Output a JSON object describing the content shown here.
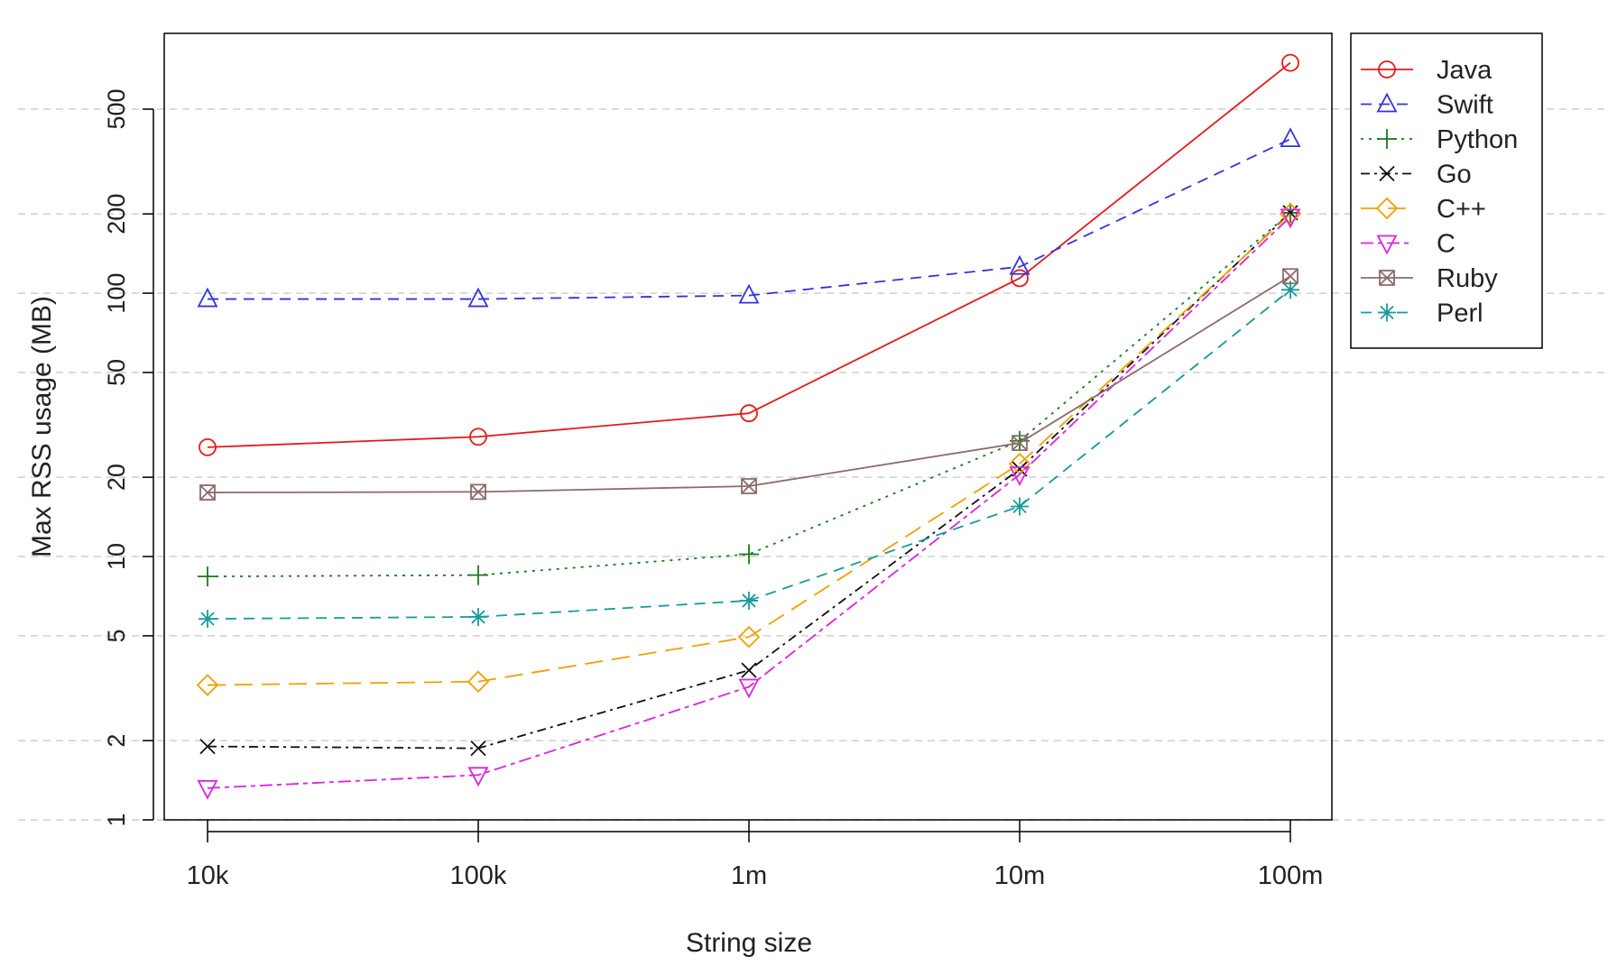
{
  "chart_data": {
    "type": "line",
    "xlabel": "String size",
    "ylabel": "Max RSS usage (MB)",
    "yscale": "log",
    "ylim": [
      1,
      700
    ],
    "yticks": [
      1,
      2,
      5,
      10,
      20,
      50,
      100,
      200,
      500
    ],
    "categories": [
      "10k",
      "100k",
      "1m",
      "10m",
      "100m"
    ],
    "grid": "horizontal dashed",
    "legend_position": "top-right, outside plot",
    "series": [
      {
        "name": "Java",
        "color": "#e41a1c",
        "line": "solid",
        "marker": "circle",
        "values": [
          26,
          28.5,
          35,
          114,
          750
        ]
      },
      {
        "name": "Swift",
        "color": "#3333dd",
        "line": "dashed",
        "marker": "triangle-up",
        "values": [
          95,
          95,
          98,
          126,
          385
        ]
      },
      {
        "name": "Python",
        "color": "#1a7a1a",
        "line": "dotted",
        "marker": "plus",
        "values": [
          8.4,
          8.5,
          10.2,
          27.5,
          202
        ]
      },
      {
        "name": "Go",
        "color": "#111111",
        "line": "dashdot",
        "marker": "x",
        "values": [
          1.9,
          1.87,
          3.7,
          21.5,
          202
        ]
      },
      {
        "name": "C++",
        "color": "#f0a000",
        "line": "longdash",
        "marker": "diamond",
        "values": [
          3.25,
          3.35,
          4.95,
          22.5,
          200
        ]
      },
      {
        "name": "C",
        "color": "#dd22dd",
        "line": "twodash",
        "marker": "triangle-down",
        "values": [
          1.32,
          1.48,
          3.2,
          20.5,
          195
        ]
      },
      {
        "name": "Ruby",
        "color": "#8b6b6b",
        "line": "solid",
        "marker": "square-x",
        "values": [
          17.5,
          17.6,
          18.5,
          27,
          116
        ]
      },
      {
        "name": "Perl",
        "color": "#1a9a9a",
        "line": "dashed",
        "marker": "asterisk",
        "values": [
          5.8,
          5.9,
          6.8,
          15.5,
          103
        ]
      }
    ]
  }
}
